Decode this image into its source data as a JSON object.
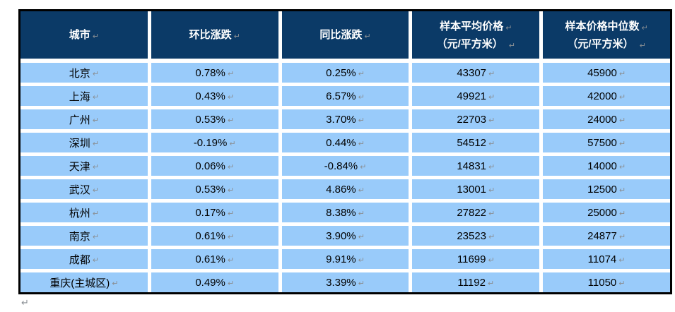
{
  "glyphs": {
    "return_mark": "↵"
  },
  "colors": {
    "header_bg": "#0b3a67",
    "row_bg": "#99cbfa",
    "outer_border": "#000000",
    "gutter": "#ffffff",
    "mark_gray": "#8a8f94",
    "header_text": "#ffffff",
    "body_text": "#000000"
  },
  "table": {
    "columns": [
      {
        "label": "城市",
        "sublabel": ""
      },
      {
        "label": "环比涨跌",
        "sublabel": ""
      },
      {
        "label": "同比涨跌",
        "sublabel": ""
      },
      {
        "label": "样本平均价格",
        "sublabel": "（元/平方米）"
      },
      {
        "label": "样本价格中位数",
        "sublabel": "（元/平方米）"
      }
    ],
    "rows": [
      {
        "city": "北京",
        "mom": "0.78%",
        "yoy": "0.25%",
        "avg": "43307",
        "median": "45900"
      },
      {
        "city": "上海",
        "mom": "0.43%",
        "yoy": "6.57%",
        "avg": "49921",
        "median": "42000"
      },
      {
        "city": "广州",
        "mom": "0.53%",
        "yoy": "3.70%",
        "avg": "22703",
        "median": "24000"
      },
      {
        "city": "深圳",
        "mom": "-0.19%",
        "yoy": "0.44%",
        "avg": "54512",
        "median": "57500"
      },
      {
        "city": "天津",
        "mom": "0.06%",
        "yoy": "-0.84%",
        "avg": "14831",
        "median": "14000"
      },
      {
        "city": "武汉",
        "mom": "0.53%",
        "yoy": "4.86%",
        "avg": "13001",
        "median": "12500"
      },
      {
        "city": "杭州",
        "mom": "0.17%",
        "yoy": "8.38%",
        "avg": "27822",
        "median": "25000"
      },
      {
        "city": "南京",
        "mom": "0.61%",
        "yoy": "3.90%",
        "avg": "23523",
        "median": "24877"
      },
      {
        "city": "成都",
        "mom": "0.61%",
        "yoy": "9.91%",
        "avg": "11699",
        "median": "11074"
      },
      {
        "city": "重庆(主城区)",
        "mom": "0.49%",
        "yoy": "3.39%",
        "avg": "11192",
        "median": "11050"
      }
    ]
  }
}
